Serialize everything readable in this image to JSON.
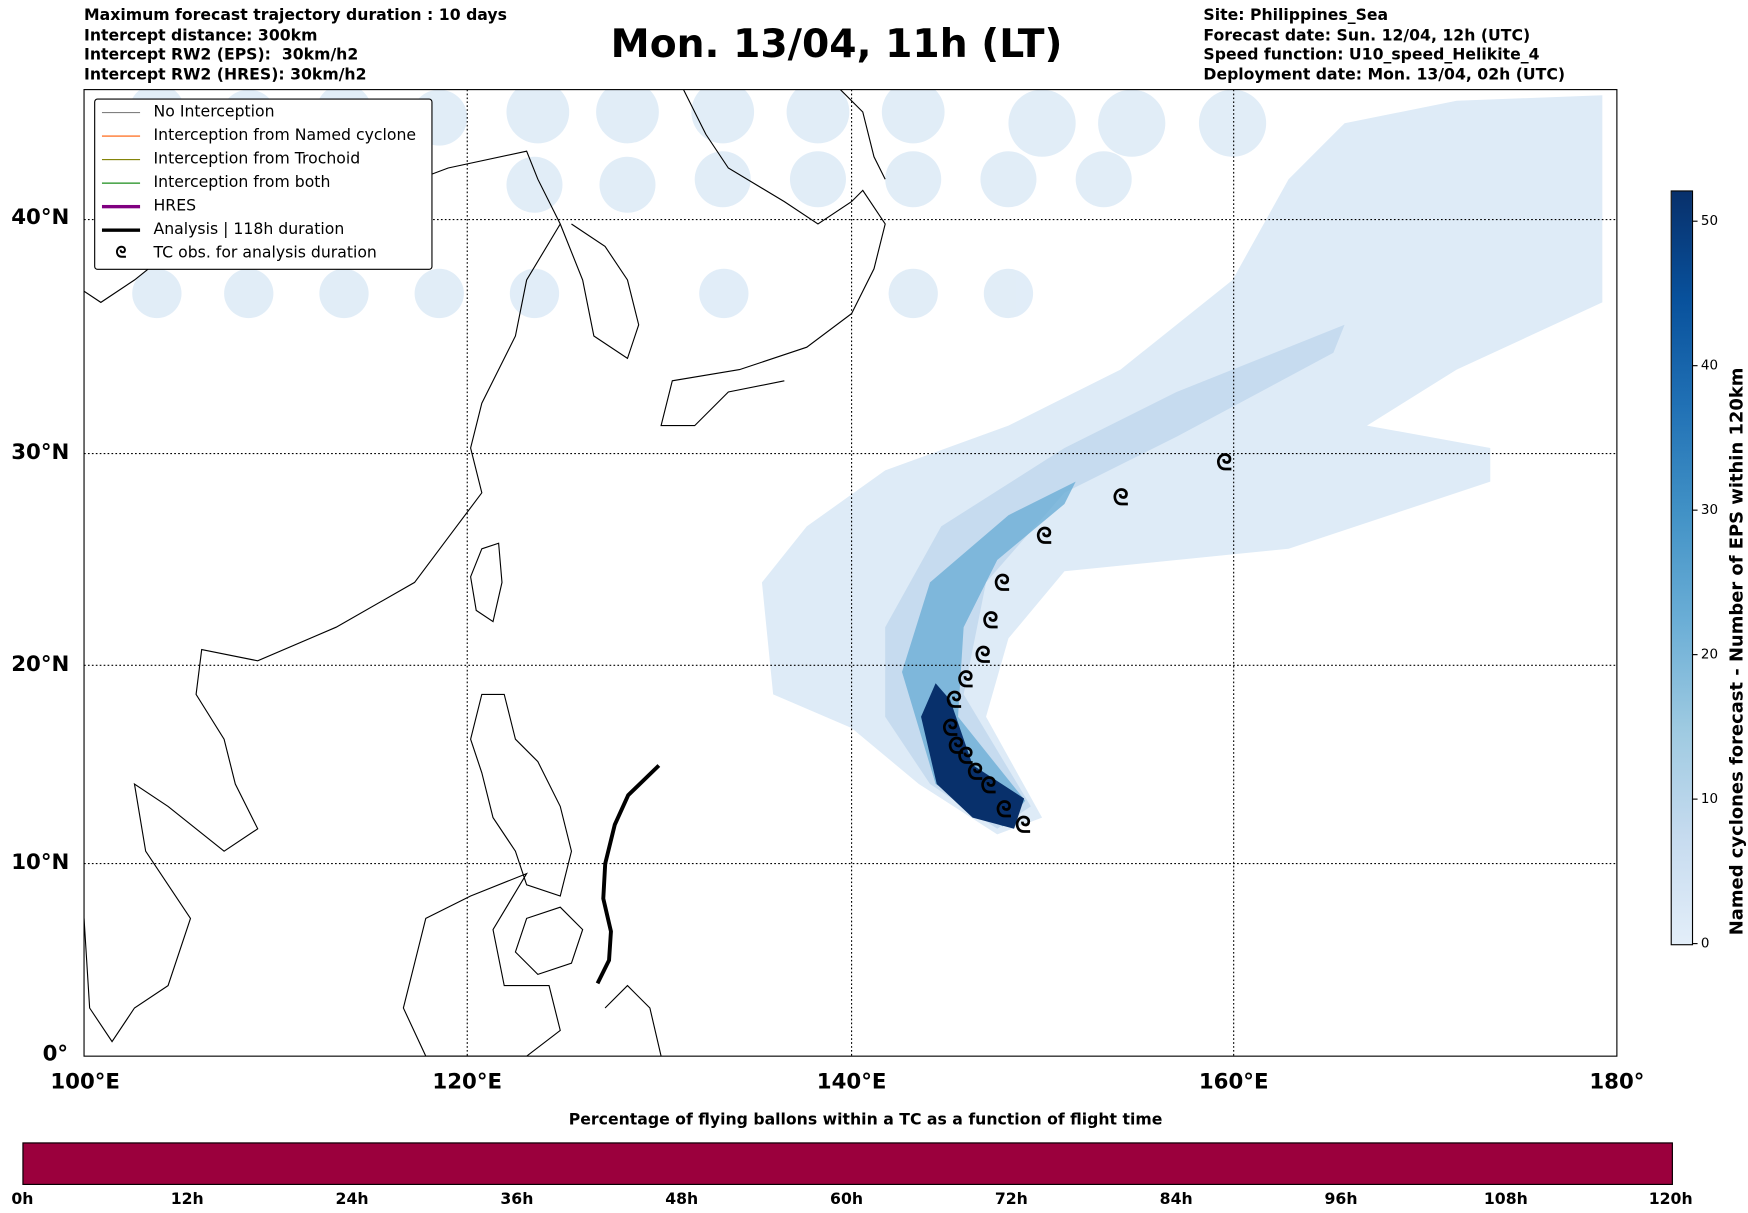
{
  "header_left": [
    "Maximum forecast trajectory duration : 10 days",
    "Intercept distance: 300km",
    "Intercept RW2 (EPS):  30km/h2",
    "Intercept RW2 (HRES): 30km/h2"
  ],
  "title": "Mon. 13/04, 11h (LT)",
  "header_right": [
    "Site: Philippines_Sea",
    "Forecast date: Sun. 12/04, 12h (UTC)",
    "Speed function: U10_speed_Helikite_4",
    "Deployment date: Mon. 13/04, 02h (UTC)"
  ],
  "legend": [
    {
      "label": "No Interception",
      "color": "#808080",
      "style": "thin"
    },
    {
      "label": "Interception from Named cyclone",
      "color": "#ff5a00",
      "style": "thin"
    },
    {
      "label": "Interception from Trochoid",
      "color": "#808000",
      "style": "thin"
    },
    {
      "label": "Interception from both",
      "color": "#008000",
      "style": "thin"
    },
    {
      "label": "HRES",
      "color": "#800080",
      "style": "thick"
    },
    {
      "label": "Analysis | 118h duration",
      "color": "#000000",
      "style": "thick"
    },
    {
      "label": "TC obs. for analysis duration",
      "icon": "tc-symbol-icon"
    }
  ],
  "lat_ticks": [
    "40°N",
    "30°N",
    "20°N",
    "10°N",
    "0°"
  ],
  "lon_ticks": [
    "100°E",
    "120°E",
    "140°E",
    "160°E",
    "180°"
  ],
  "colorbar": {
    "label": "Named cyclones forecast - Number of EPS within 120km",
    "ticks": [
      "0",
      "10",
      "20",
      "30",
      "40",
      "50"
    ],
    "min": 0,
    "max": 52,
    "colormap": "Blues"
  },
  "time_bar": {
    "title": "Percentage of flying ballons within a TC as a function of flight time",
    "ticks": [
      "0h",
      "12h",
      "24h",
      "36h",
      "48h",
      "60h",
      "72h",
      "84h",
      "96h",
      "108h",
      "120h"
    ],
    "color": "#9b003d",
    "percent": 100
  },
  "tc_symbol": "ᘓ",
  "analysis_track": [
    [
      130,
      15
    ],
    [
      128.4,
      13.5
    ],
    [
      127.7,
      12
    ],
    [
      127.2,
      10
    ],
    [
      127.1,
      8.2
    ],
    [
      127.5,
      6.5
    ],
    [
      127.4,
      5
    ],
    [
      126.8,
      3.8
    ]
  ],
  "tc_obs": [
    [
      149,
      12
    ],
    [
      148,
      12.8
    ],
    [
      147.2,
      14
    ],
    [
      146.5,
      14.7
    ],
    [
      146,
      15.5
    ],
    [
      145.5,
      16
    ],
    [
      145.2,
      16.9
    ],
    [
      145.4,
      18.3
    ],
    [
      146,
      19.3
    ],
    [
      146.9,
      20.5
    ],
    [
      147.3,
      22.2
    ],
    [
      147.9,
      24
    ],
    [
      150.1,
      26.2
    ],
    [
      154.1,
      28
    ],
    [
      159.5,
      29.6
    ]
  ]
}
